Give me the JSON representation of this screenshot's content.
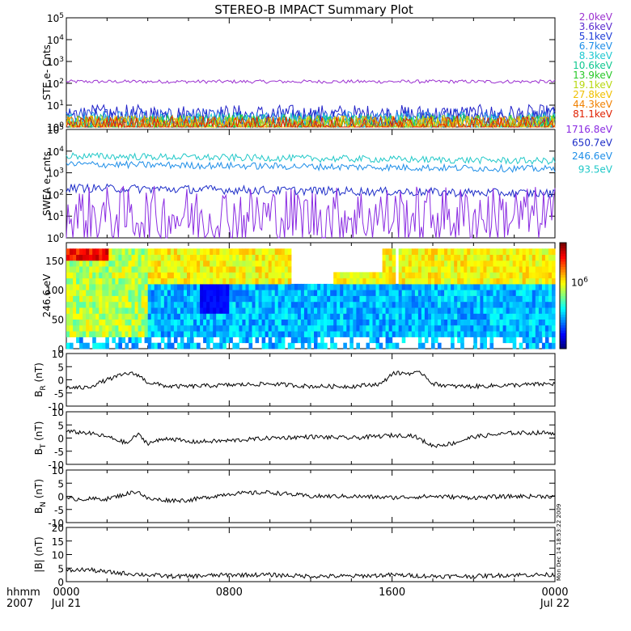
{
  "title": "STEREO-B IMPACT Summary Plot",
  "timestamp": "Mon Dec 14 18:53:22 2009",
  "bottom_labels": {
    "hhmm": "hhmm",
    "year": "2007"
  },
  "chart_data": [
    {
      "id": "ste",
      "type": "line",
      "ylabel": "STE e- Cnts",
      "yscale": "log",
      "ylim": [
        1,
        100000
      ],
      "yticks": [
        "10^0",
        "10^1",
        "10^2",
        "10^3",
        "10^4",
        "10^5"
      ],
      "legend": [
        {
          "label": "2.0keV",
          "color": "#9b30d0"
        },
        {
          "label": "3.6keV",
          "color": "#5a2ad0"
        },
        {
          "label": "5.1keV",
          "color": "#1e3cd8"
        },
        {
          "label": "6.7keV",
          "color": "#1e8ee8"
        },
        {
          "label": "8.3keV",
          "color": "#1ec8d0"
        },
        {
          "label": "10.6keV",
          "color": "#10c890"
        },
        {
          "label": "13.9keV",
          "color": "#28c828"
        },
        {
          "label": "19.1keV",
          "color": "#b8d810"
        },
        {
          "label": "27.8keV",
          "color": "#f0c000"
        },
        {
          "label": "44.3keV",
          "color": "#f08000"
        },
        {
          "label": "81.1keV",
          "color": "#e02000"
        }
      ],
      "series": [
        {
          "name": "2.0keV",
          "level": 120,
          "noise": 0.02,
          "color": "#9b30d0"
        },
        {
          "name": "3.6keV",
          "level": 3.5,
          "noise": 0.12,
          "color": "#2020c8"
        },
        {
          "name": "5.1keV",
          "level": 2.5,
          "noise": 0.12,
          "color": "#1e3cd8"
        },
        {
          "name": "6.7keV",
          "level": 1.8,
          "noise": 0.12,
          "color": "#1e8ee8"
        },
        {
          "name": "8.3keV",
          "level": 1.5,
          "noise": 0.12,
          "color": "#1ec8d0"
        },
        {
          "name": "10.6keV",
          "level": 1.3,
          "noise": 0.12,
          "color": "#10c890"
        },
        {
          "name": "13.9keV",
          "level": 1.2,
          "noise": 0.12,
          "color": "#28c828"
        },
        {
          "name": "19.1keV",
          "level": 1.15,
          "noise": 0.12,
          "color": "#b8d810"
        },
        {
          "name": "27.8keV",
          "level": 1.1,
          "noise": 0.12,
          "color": "#f0c000"
        },
        {
          "name": "44.3keV",
          "level": 1.08,
          "noise": 0.12,
          "color": "#f08000"
        },
        {
          "name": "81.1keV",
          "level": 1.05,
          "noise": 0.12,
          "color": "#e02000"
        }
      ]
    },
    {
      "id": "swea",
      "type": "line",
      "ylabel": "SWEA e- cnts",
      "yscale": "log",
      "ylim": [
        1,
        100000
      ],
      "yticks": [
        "10^0",
        "10^1",
        "10^2",
        "10^3",
        "10^4",
        "10^5"
      ],
      "legend": [
        {
          "label": "1716.8eV",
          "color": "#8a2be2"
        },
        {
          "label": "650.7eV",
          "color": "#1c2cc8"
        },
        {
          "label": "246.6eV",
          "color": "#1e8ee8"
        },
        {
          "label": "93.5eV",
          "color": "#20c8c8"
        }
      ],
      "series": [
        {
          "name": "93.5eV",
          "start": 6000,
          "end": 3500,
          "noise": 0.04,
          "color": "#20c8c8"
        },
        {
          "name": "246.6eV",
          "start": 2500,
          "end": 1500,
          "noise": 0.04,
          "color": "#1e8ee8"
        },
        {
          "name": "650.7eV",
          "start": 200,
          "end": 110,
          "noise": 0.05,
          "color": "#1c2cc8"
        },
        {
          "name": "1716.8eV",
          "start": 10,
          "end": 10,
          "noise": 0.35,
          "color": "#8a2be2"
        }
      ]
    },
    {
      "id": "pad",
      "type": "heatmap",
      "ylabel": "246.6 eV",
      "ylim": [
        0,
        180
      ],
      "yticks": [
        0,
        50,
        100,
        150
      ],
      "colorbar_label": "10^6"
    },
    {
      "id": "br",
      "type": "line",
      "ylim": [
        -10,
        10
      ],
      "yticks": [
        -10,
        -5,
        0,
        5,
        10
      ],
      "ylabel_main": "B",
      "ylabel_sub": "R",
      "ylabel_unit": "(nT)",
      "x": [
        0,
        1,
        2,
        3,
        3.5,
        4,
        5,
        6,
        8,
        10,
        12,
        14,
        15.5,
        16,
        17.5,
        18,
        19,
        20,
        22,
        24
      ],
      "y": [
        -3,
        -3,
        0,
        2.5,
        2.0,
        -1,
        -2.5,
        -2.5,
        -2,
        -1.5,
        -2.5,
        -2.5,
        -1.5,
        2.5,
        2.5,
        -1.5,
        -2.5,
        -2.5,
        -2,
        -1.5
      ]
    },
    {
      "id": "bt",
      "type": "line",
      "ylim": [
        -10,
        10
      ],
      "yticks": [
        -10,
        -5,
        0,
        5,
        10
      ],
      "ylabel_main": "B",
      "ylabel_sub": "T",
      "ylabel_unit": "(nT)",
      "x": [
        0,
        1,
        2,
        3,
        3.5,
        4,
        5,
        6,
        8,
        10,
        12,
        14,
        16,
        17,
        18,
        19,
        20,
        22,
        24
      ],
      "y": [
        2.5,
        2,
        0.5,
        -2,
        1.5,
        -2,
        0,
        -1.5,
        -1,
        0,
        0.5,
        0,
        1,
        1,
        -3,
        -2,
        0.5,
        2,
        2
      ]
    },
    {
      "id": "bn",
      "type": "line",
      "ylim": [
        -10,
        10
      ],
      "yticks": [
        -10,
        -5,
        0,
        5,
        10
      ],
      "ylabel_main": "B",
      "ylabel_sub": "N",
      "ylabel_unit": "(nT)",
      "x": [
        0,
        2,
        3,
        3.5,
        4,
        5,
        6,
        8,
        10,
        12,
        14,
        16,
        18,
        20,
        22,
        24
      ],
      "y": [
        -1,
        -1,
        1,
        2,
        -1,
        -1.5,
        -1.5,
        1,
        1.5,
        0,
        0,
        -0.5,
        0,
        -0.5,
        0,
        0
      ]
    },
    {
      "id": "bmag",
      "type": "line",
      "ylim": [
        0,
        20
      ],
      "yticks": [
        0,
        5,
        10,
        15,
        20
      ],
      "ylabel_main": "|B| (nT)",
      "x": [
        0,
        1,
        2,
        3,
        4,
        5,
        6,
        8,
        10,
        12,
        14,
        16,
        18,
        20,
        22,
        24
      ],
      "y": [
        4,
        4.5,
        3.5,
        3,
        2.5,
        2,
        2,
        2.5,
        2.5,
        2,
        2,
        2.5,
        2,
        2,
        2.5,
        2.5
      ]
    }
  ],
  "x_axis": {
    "range_hours": [
      0,
      24
    ],
    "ticks": [
      {
        "hour": 0,
        "top": "0000",
        "bottom": "Jul 21"
      },
      {
        "hour": 8,
        "top": "0800",
        "bottom": ""
      },
      {
        "hour": 16,
        "top": "1600",
        "bottom": ""
      },
      {
        "hour": 24,
        "top": "0000",
        "bottom": "Jul 22"
      }
    ]
  }
}
